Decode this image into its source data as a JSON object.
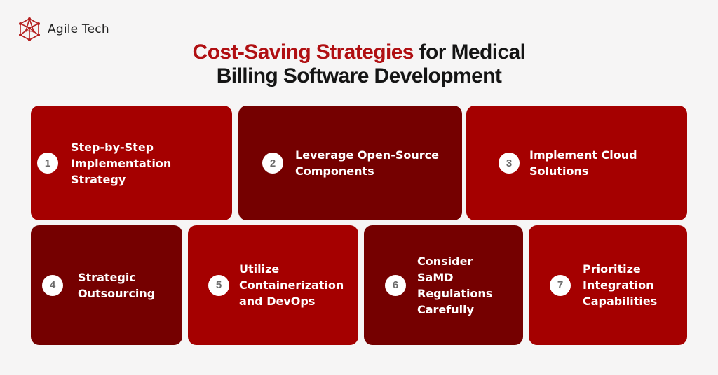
{
  "logo": {
    "text": "Agile Tech"
  },
  "title": {
    "accent": "Cost-Saving Strategies",
    "rest_line1": " for Medical",
    "line2": "Billing Software Development"
  },
  "cards": [
    {
      "number": "1",
      "label": "Step-by-Step\nImplementation\nStrategy"
    },
    {
      "number": "2",
      "label": "Leverage Open-Source\nComponents"
    },
    {
      "number": "3",
      "label": "Implement Cloud\nSolutions"
    },
    {
      "number": "4",
      "label": "Strategic\nOutsourcing"
    },
    {
      "number": "5",
      "label": "Utilize\nContainerization\nand DevOps"
    },
    {
      "number": "6",
      "label": "Consider\nSaMD\nRegulations\nCarefully"
    },
    {
      "number": "7",
      "label": "Prioritize\nIntegration\nCapabilities"
    }
  ],
  "colors": {
    "accent": "#b00f12",
    "card_red": "#a50000",
    "card_dark": "#750000"
  }
}
